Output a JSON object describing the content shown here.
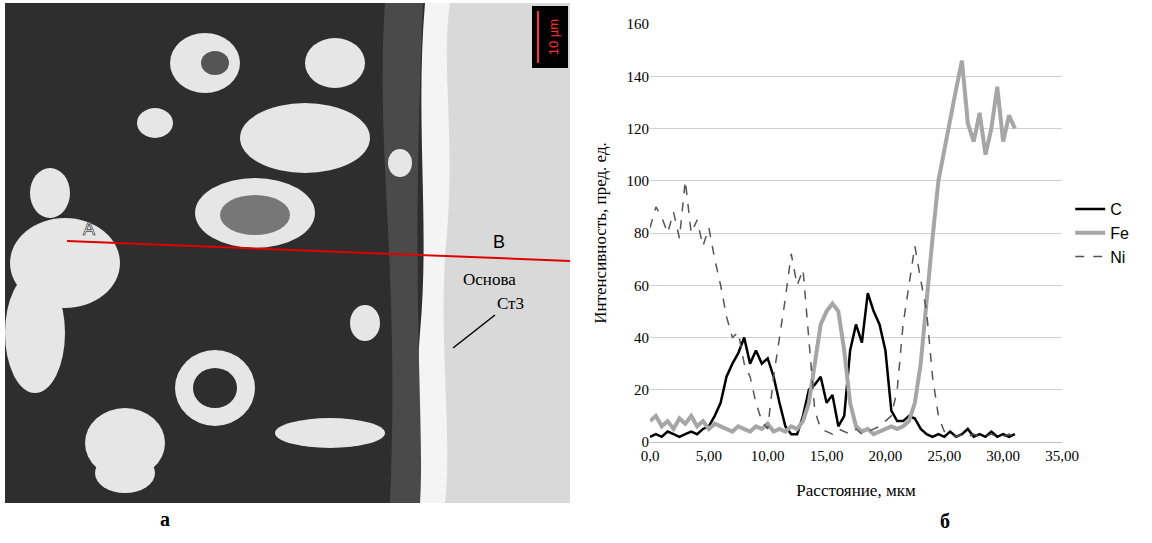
{
  "image_panel": {
    "letter": "а",
    "scale_bar": "10 µm",
    "start_point": "A",
    "end_point": "B",
    "base_label": [
      "Основа",
      "Ст3"
    ]
  },
  "chart_panel_letter": "б",
  "chart_data": {
    "type": "line",
    "x_label": "Расстояние, мкм",
    "y_label": "Интенсивность, пред. ед.",
    "x": [
      0,
      0.5,
      1,
      1.5,
      2,
      2.5,
      3,
      3.5,
      4,
      4.5,
      5,
      5.5,
      6,
      6.5,
      7,
      7.5,
      8,
      8.5,
      9,
      9.5,
      10,
      10.5,
      11,
      11.5,
      12,
      12.5,
      13,
      13.5,
      14,
      14.5,
      15,
      15.5,
      16,
      16.5,
      17,
      17.5,
      18,
      18.5,
      19,
      19.5,
      20,
      20.5,
      21,
      21.5,
      22,
      22.5,
      23,
      23.5,
      24,
      24.5,
      25,
      25.5,
      26,
      26.5,
      27,
      27.5,
      28,
      28.5,
      29,
      29.5,
      30,
      30.5,
      31
    ],
    "series": [
      {
        "name": "C",
        "color": "#000000",
        "line_style": "solid",
        "values": [
          2,
          3,
          2,
          4,
          3,
          2,
          3,
          4,
          3,
          5,
          6,
          10,
          15,
          25,
          30,
          34,
          40,
          30,
          35,
          30,
          32,
          25,
          15,
          6,
          3,
          3,
          10,
          20,
          22,
          25,
          15,
          18,
          6,
          10,
          35,
          45,
          38,
          57,
          50,
          45,
          35,
          12,
          8,
          8,
          10,
          9,
          5,
          3,
          2,
          3,
          2,
          4,
          2,
          3,
          5,
          2,
          3,
          2,
          4,
          2,
          3,
          2,
          3
        ]
      },
      {
        "name": "Fe",
        "color": "#a6a6a6",
        "line_style": "solid",
        "values": [
          8,
          10,
          6,
          8,
          5,
          9,
          7,
          10,
          6,
          8,
          5,
          7,
          6,
          5,
          4,
          6,
          5,
          4,
          6,
          5,
          7,
          4,
          5,
          4,
          6,
          5,
          8,
          15,
          30,
          45,
          50,
          53,
          50,
          35,
          15,
          6,
          4,
          5,
          3,
          4,
          5,
          6,
          5,
          6,
          8,
          15,
          30,
          55,
          78,
          100,
          112,
          125,
          135,
          146,
          122,
          115,
          126,
          110,
          120,
          136,
          115,
          125,
          120
        ]
      },
      {
        "name": "Ni",
        "color": "#555555",
        "line_style": "dash",
        "values": [
          82,
          90,
          86,
          80,
          88,
          78,
          100,
          80,
          85,
          75,
          82,
          70,
          60,
          48,
          40,
          42,
          30,
          25,
          15,
          8,
          5,
          25,
          40,
          55,
          72,
          60,
          66,
          40,
          12,
          5,
          4,
          3,
          5,
          4,
          3,
          5,
          3,
          4,
          5,
          6,
          8,
          10,
          20,
          45,
          60,
          75,
          62,
          50,
          25,
          10,
          4,
          3,
          2,
          3,
          2,
          3,
          2,
          2,
          3,
          2,
          2,
          3,
          2
        ]
      }
    ],
    "xlim": [
      0,
      35
    ],
    "xticks": [
      {
        "value": 0,
        "label": "0,0"
      },
      {
        "value": 5,
        "label": "5,00"
      },
      {
        "value": 10,
        "label": "10,00"
      },
      {
        "value": 15,
        "label": "15,00"
      },
      {
        "value": 20,
        "label": "20,00"
      },
      {
        "value": 25,
        "label": "25,00"
      },
      {
        "value": 30,
        "label": "30,00"
      },
      {
        "value": 35,
        "label": "35,00"
      }
    ],
    "ylim": [
      0,
      160
    ],
    "yticks": [
      0,
      20,
      40,
      60,
      80,
      100,
      120,
      140,
      160
    ],
    "grid": true,
    "legend": "right"
  }
}
